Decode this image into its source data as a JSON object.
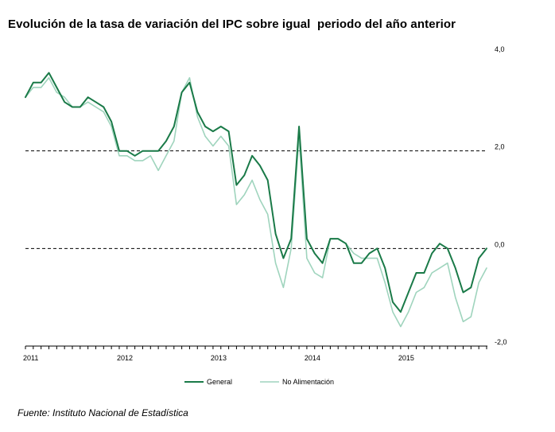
{
  "title": "Evolución de la tasa de variación del IPC sobre igual  periodo del año anterior",
  "source": "Fuente: Instituto Nacional de Estadística",
  "chart_data": {
    "type": "line",
    "x_start": "2011-01",
    "x_end": "2015-12",
    "x_ticks": [
      "2011",
      "2012",
      "2013",
      "2014",
      "2015"
    ],
    "ylim": [
      -2.0,
      4.0
    ],
    "y_ticks": [
      "4,0",
      "2,0",
      "0,0",
      "-2,0"
    ],
    "reference_lines": [
      2.0,
      0.0
    ],
    "legend_position": "bottom",
    "series": [
      {
        "name": "General",
        "color": "#1a7a48",
        "values": [
          3.1,
          3.4,
          3.4,
          3.6,
          3.3,
          3.0,
          2.9,
          2.9,
          3.1,
          3.0,
          2.9,
          2.6,
          2.0,
          2.0,
          1.9,
          2.0,
          2.0,
          2.0,
          2.2,
          2.5,
          3.2,
          3.4,
          2.8,
          2.5,
          2.4,
          2.5,
          2.4,
          1.3,
          1.5,
          1.9,
          1.7,
          1.4,
          0.3,
          -0.2,
          0.2,
          2.5,
          0.2,
          -0.1,
          -0.3,
          0.2,
          0.2,
          0.1,
          -0.3,
          -0.3,
          -0.1,
          0.0,
          -0.4,
          -1.1,
          -1.3,
          -0.9,
          -0.5,
          -0.5,
          -0.1,
          0.1,
          0.0,
          -0.4,
          -0.9,
          -0.8,
          -0.2,
          0.0
        ]
      },
      {
        "name": "No Alimentación",
        "color": "#9fd4bd",
        "values": [
          3.1,
          3.3,
          3.3,
          3.5,
          3.2,
          3.1,
          2.9,
          2.9,
          3.0,
          2.9,
          2.8,
          2.5,
          1.9,
          1.9,
          1.8,
          1.8,
          1.9,
          1.6,
          1.9,
          2.2,
          3.2,
          3.5,
          2.7,
          2.3,
          2.1,
          2.3,
          2.1,
          0.9,
          1.1,
          1.4,
          1.0,
          0.7,
          -0.3,
          -0.8,
          0.0,
          2.3,
          -0.2,
          -0.5,
          -0.6,
          0.2,
          0.2,
          0.1,
          -0.1,
          -0.2,
          -0.2,
          -0.2,
          -0.7,
          -1.3,
          -1.6,
          -1.3,
          -0.9,
          -0.8,
          -0.5,
          -0.4,
          -0.3,
          -1.0,
          -1.5,
          -1.4,
          -0.7,
          -0.4
        ]
      }
    ]
  }
}
